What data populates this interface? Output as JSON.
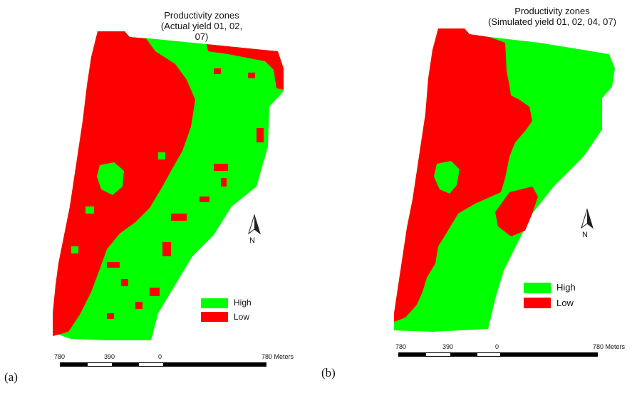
{
  "figure": {
    "panels": [
      {
        "id": "a",
        "panel_label": "(a)",
        "title_line1": "Productivity zones",
        "title_line2": "(Actual yield 01, 02, 07)",
        "legend": [
          {
            "label": "High",
            "color": "#00ff00"
          },
          {
            "label": "Low",
            "color": "#ff0000"
          }
        ],
        "north_label": "N",
        "scale": {
          "ticks": [
            "780",
            "390",
            "0",
            "780 Meters"
          ]
        }
      },
      {
        "id": "b",
        "panel_label": "(b)",
        "title_line1": "Productivity zones",
        "title_line2": "(Simulated yield 01, 02, 04, 07)",
        "legend": [
          {
            "label": "High",
            "color": "#00ff00"
          },
          {
            "label": "Low",
            "color": "#ff0000"
          }
        ],
        "north_label": "N",
        "scale": {
          "ticks": [
            "780",
            "390",
            "0",
            "780 Meters"
          ]
        }
      }
    ],
    "colors": {
      "high": "#00ff00",
      "low": "#ff0000",
      "background": "#ffffff"
    }
  }
}
